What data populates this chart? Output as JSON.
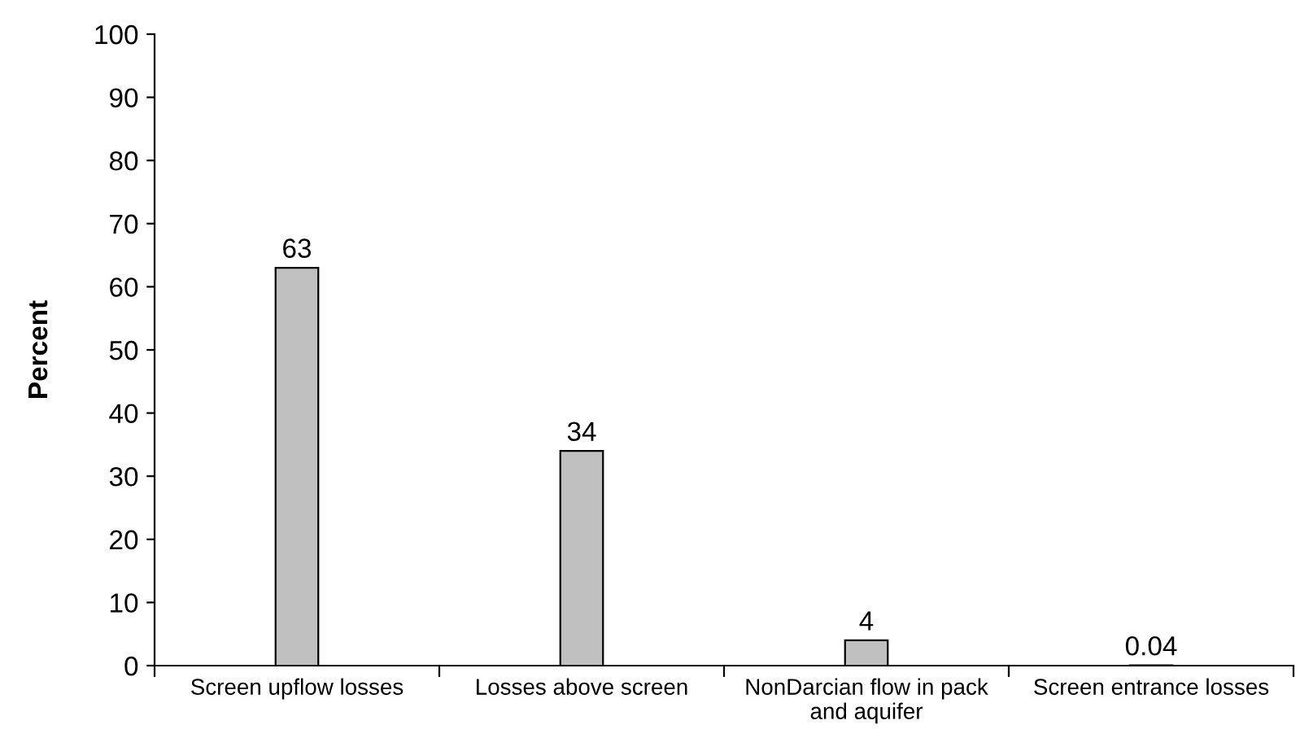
{
  "chart_data": {
    "type": "bar",
    "ylabel": "Percent",
    "categories": [
      "Screen upflow losses",
      "Losses above screen",
      "NonDarcian flow in pack and aquifer",
      "Screen entrance losses"
    ],
    "values": [
      63,
      34,
      4,
      0.04
    ],
    "color": "#c0c0c0",
    "data_labels": true,
    "ylim": [
      0,
      100
    ],
    "yticks": [
      0,
      10,
      20,
      30,
      40,
      50,
      60,
      70,
      80,
      90,
      100
    ],
    "grid": false
  }
}
